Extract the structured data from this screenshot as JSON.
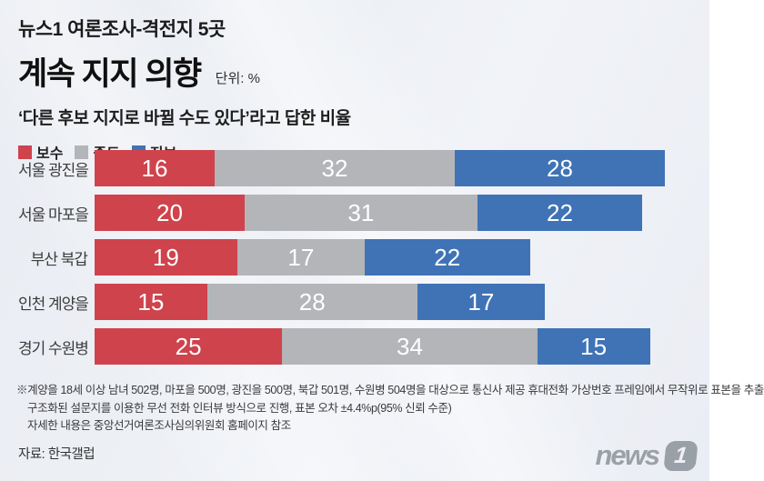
{
  "header": {
    "kicker": "뉴스1 여론조사-격전지 5곳",
    "title": "계속 지지 의향",
    "unit_label": "단위: %",
    "subtitle": "‘다른 후보 지지로 바뀔 수도 있다’라고 답한 비율"
  },
  "legend": {
    "items": [
      {
        "key": "conservative",
        "label": "보수",
        "color": "#cf434c"
      },
      {
        "key": "moderate",
        "label": "중도",
        "color": "#b4b5b8"
      },
      {
        "key": "progressive",
        "label": "진보",
        "color": "#3f73b6"
      }
    ]
  },
  "chart_data": {
    "type": "bar",
    "variant": "horizontal_stacked",
    "title": "계속 지지 의향",
    "unit": "%",
    "categories": [
      "서울 광진을",
      "서울 마포을",
      "부산 북갑",
      "인천 계양을",
      "경기 수원병"
    ],
    "series": [
      {
        "key": "conservative",
        "name": "보수",
        "color": "#cf434c",
        "values": [
          16,
          20,
          19,
          15,
          25
        ]
      },
      {
        "key": "moderate",
        "name": "중도",
        "color": "#b4b5b8",
        "values": [
          32,
          31,
          17,
          28,
          34
        ]
      },
      {
        "key": "progressive",
        "name": "진보",
        "color": "#3f73b6",
        "values": [
          28,
          22,
          22,
          17,
          15
        ]
      }
    ],
    "totals": [
      76,
      73,
      58,
      60,
      74
    ],
    "xlim": [
      0,
      76
    ],
    "value_labels": true,
    "legend_position": "top-left",
    "grid": false
  },
  "footnotes": [
    "※계양을 18세 이상 남녀 502명, 마포을 500명, 광진을 500명, 북갑 501명, 수원병 504명을 대상으로 통신사 제공 휴대전화 가상번호 프레임에서 무작위로 표본을 추출",
    "구조화된 설문지를 이용한 무선 전화 인터뷰 방식으로 진행, 표본 오차 ±4.4%p(95% 신뢰 수준)",
    "자세한 내용은 중앙선거여론조사심의위원회 홈페이지 참조"
  ],
  "source": "자료: 한국갤럽",
  "logo": {
    "text": "news",
    "badge": "1"
  }
}
